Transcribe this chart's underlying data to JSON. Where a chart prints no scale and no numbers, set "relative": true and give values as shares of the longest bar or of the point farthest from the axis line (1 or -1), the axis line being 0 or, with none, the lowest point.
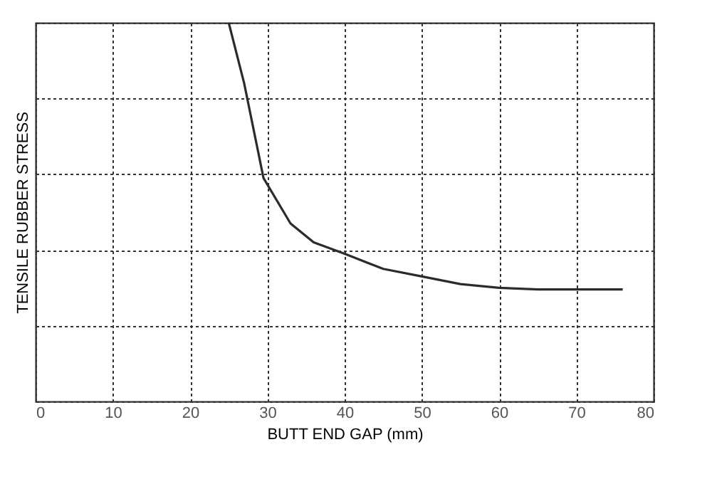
{
  "chart_data": {
    "type": "line",
    "xlabel": "BUTT END GAP (mm)",
    "ylabel": "TENSILE RUBBER STRESS",
    "x": [
      25,
      27,
      29.5,
      33,
      36,
      40,
      45,
      50,
      55,
      60,
      65,
      76
    ],
    "series": [
      {
        "color": "#2b2b2b",
        "values": [
          1,
          0.84,
          0.59,
          0.47,
          0.42,
          0.39,
          0.35,
          0.33,
          0.31,
          0.3,
          0.296,
          0.296
        ]
      }
    ],
    "relative": true,
    "xlim": [
      0,
      80
    ],
    "xticks": [
      0,
      10,
      20,
      30,
      40,
      50,
      60,
      70,
      80
    ],
    "grid": true,
    "marker": "none",
    "line_style": "solid"
  }
}
